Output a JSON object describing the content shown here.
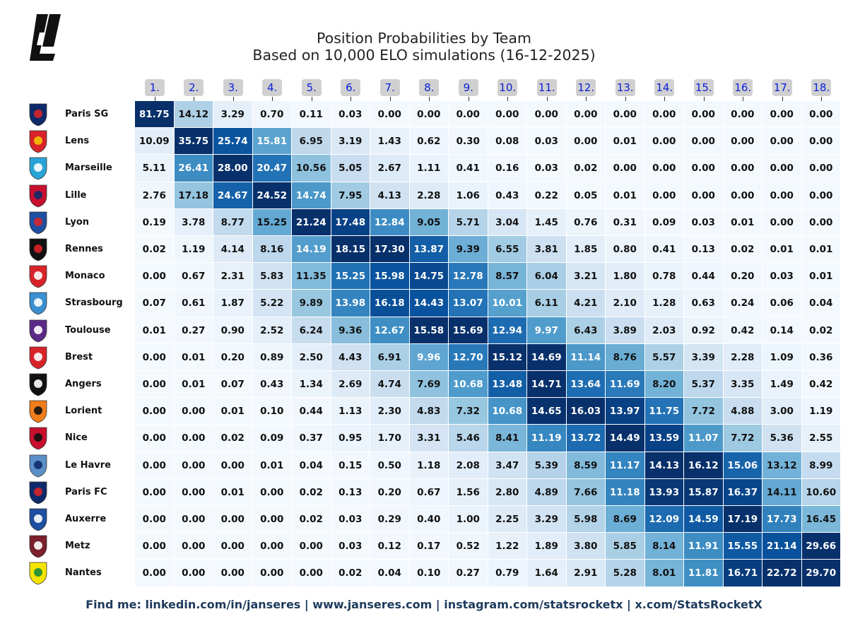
{
  "brand": {
    "logo": "stats-rocket-logo"
  },
  "chart_data": {
    "type": "heatmap",
    "title": "Position Probabilities by Team",
    "subtitle": "Based on 10,000 ELO simulations (16-12-2025)",
    "columns": [
      "1.",
      "2.",
      "3.",
      "4.",
      "5.",
      "6.",
      "7.",
      "8.",
      "9.",
      "10.",
      "11.",
      "12.",
      "13.",
      "14.",
      "15.",
      "16.",
      "17.",
      "18."
    ],
    "rows": [
      {
        "team": "Paris SG",
        "crest": "paris-sg-crest",
        "values": [
          "81.75",
          "14.12",
          "3.29",
          "0.70",
          "0.11",
          "0.03",
          "0.00",
          "0.00",
          "0.00",
          "0.00",
          "0.00",
          "0.00",
          "0.00",
          "0.00",
          "0.00",
          "0.00",
          "0.00",
          "0.00"
        ]
      },
      {
        "team": "Lens",
        "crest": "lens-crest",
        "values": [
          "10.09",
          "35.75",
          "25.74",
          "15.81",
          "6.95",
          "3.19",
          "1.43",
          "0.62",
          "0.30",
          "0.08",
          "0.03",
          "0.00",
          "0.01",
          "0.00",
          "0.00",
          "0.00",
          "0.00",
          "0.00"
        ]
      },
      {
        "team": "Marseille",
        "crest": "marseille-crest",
        "values": [
          "5.11",
          "26.41",
          "28.00",
          "20.47",
          "10.56",
          "5.05",
          "2.67",
          "1.11",
          "0.41",
          "0.16",
          "0.03",
          "0.02",
          "0.00",
          "0.00",
          "0.00",
          "0.00",
          "0.00",
          "0.00"
        ]
      },
      {
        "team": "Lille",
        "crest": "lille-crest",
        "values": [
          "2.76",
          "17.18",
          "24.67",
          "24.52",
          "14.74",
          "7.95",
          "4.13",
          "2.28",
          "1.06",
          "0.43",
          "0.22",
          "0.05",
          "0.01",
          "0.00",
          "0.00",
          "0.00",
          "0.00",
          "0.00"
        ]
      },
      {
        "team": "Lyon",
        "crest": "lyon-crest",
        "values": [
          "0.19",
          "3.78",
          "8.77",
          "15.25",
          "21.24",
          "17.48",
          "12.84",
          "9.05",
          "5.71",
          "3.04",
          "1.45",
          "0.76",
          "0.31",
          "0.09",
          "0.03",
          "0.01",
          "0.00",
          "0.00"
        ]
      },
      {
        "team": "Rennes",
        "crest": "rennes-crest",
        "values": [
          "0.02",
          "1.19",
          "4.14",
          "8.16",
          "14.19",
          "18.15",
          "17.30",
          "13.87",
          "9.39",
          "6.55",
          "3.81",
          "1.85",
          "0.80",
          "0.41",
          "0.13",
          "0.02",
          "0.01",
          "0.01"
        ]
      },
      {
        "team": "Monaco",
        "crest": "monaco-crest",
        "values": [
          "0.00",
          "0.67",
          "2.31",
          "5.83",
          "11.35",
          "15.25",
          "15.98",
          "14.75",
          "12.78",
          "8.57",
          "6.04",
          "3.21",
          "1.80",
          "0.78",
          "0.44",
          "0.20",
          "0.03",
          "0.01"
        ]
      },
      {
        "team": "Strasbourg",
        "crest": "strasbourg-crest",
        "values": [
          "0.07",
          "0.61",
          "1.87",
          "5.22",
          "9.89",
          "13.98",
          "16.18",
          "14.43",
          "13.07",
          "10.01",
          "6.11",
          "4.21",
          "2.10",
          "1.28",
          "0.63",
          "0.24",
          "0.06",
          "0.04"
        ]
      },
      {
        "team": "Toulouse",
        "crest": "toulouse-crest",
        "values": [
          "0.01",
          "0.27",
          "0.90",
          "2.52",
          "6.24",
          "9.36",
          "12.67",
          "15.58",
          "15.69",
          "12.94",
          "9.97",
          "6.43",
          "3.89",
          "2.03",
          "0.92",
          "0.42",
          "0.14",
          "0.02"
        ]
      },
      {
        "team": "Brest",
        "crest": "brest-crest",
        "values": [
          "0.00",
          "0.01",
          "0.20",
          "0.89",
          "2.50",
          "4.43",
          "6.91",
          "9.96",
          "12.70",
          "15.12",
          "14.69",
          "11.14",
          "8.76",
          "5.57",
          "3.39",
          "2.28",
          "1.09",
          "0.36"
        ]
      },
      {
        "team": "Angers",
        "crest": "angers-crest",
        "values": [
          "0.00",
          "0.01",
          "0.07",
          "0.43",
          "1.34",
          "2.69",
          "4.74",
          "7.69",
          "10.68",
          "13.48",
          "14.71",
          "13.64",
          "11.69",
          "8.20",
          "5.37",
          "3.35",
          "1.49",
          "0.42"
        ]
      },
      {
        "team": "Lorient",
        "crest": "lorient-crest",
        "values": [
          "0.00",
          "0.00",
          "0.01",
          "0.10",
          "0.44",
          "1.13",
          "2.30",
          "4.83",
          "7.32",
          "10.68",
          "14.65",
          "16.03",
          "13.97",
          "11.75",
          "7.72",
          "4.88",
          "3.00",
          "1.19"
        ]
      },
      {
        "team": "Nice",
        "crest": "nice-crest",
        "values": [
          "0.00",
          "0.00",
          "0.02",
          "0.09",
          "0.37",
          "0.95",
          "1.70",
          "3.31",
          "5.46",
          "8.41",
          "11.19",
          "13.72",
          "14.49",
          "13.59",
          "11.07",
          "7.72",
          "5.36",
          "2.55"
        ]
      },
      {
        "team": "Le Havre",
        "crest": "le-havre-crest",
        "values": [
          "0.00",
          "0.00",
          "0.00",
          "0.01",
          "0.04",
          "0.15",
          "0.50",
          "1.18",
          "2.08",
          "3.47",
          "5.39",
          "8.59",
          "11.17",
          "14.13",
          "16.12",
          "15.06",
          "13.12",
          "8.99"
        ]
      },
      {
        "team": "Paris FC",
        "crest": "paris-fc-crest",
        "values": [
          "0.00",
          "0.00",
          "0.01",
          "0.00",
          "0.02",
          "0.13",
          "0.20",
          "0.67",
          "1.56",
          "2.80",
          "4.89",
          "7.66",
          "11.18",
          "13.93",
          "15.87",
          "16.37",
          "14.11",
          "10.60"
        ]
      },
      {
        "team": "Auxerre",
        "crest": "auxerre-crest",
        "values": [
          "0.00",
          "0.00",
          "0.00",
          "0.00",
          "0.02",
          "0.03",
          "0.29",
          "0.40",
          "1.00",
          "2.25",
          "3.29",
          "5.98",
          "8.69",
          "12.09",
          "14.59",
          "17.19",
          "17.73",
          "16.45"
        ]
      },
      {
        "team": "Metz",
        "crest": "metz-crest",
        "values": [
          "0.00",
          "0.00",
          "0.00",
          "0.00",
          "0.00",
          "0.03",
          "0.12",
          "0.17",
          "0.52",
          "1.22",
          "1.89",
          "3.80",
          "5.85",
          "8.14",
          "11.91",
          "15.55",
          "21.14",
          "29.66"
        ]
      },
      {
        "team": "Nantes",
        "crest": "nantes-crest",
        "values": [
          "0.00",
          "0.00",
          "0.00",
          "0.00",
          "0.00",
          "0.02",
          "0.04",
          "0.10",
          "0.27",
          "0.79",
          "1.64",
          "2.91",
          "5.28",
          "8.01",
          "11.81",
          "16.71",
          "22.72",
          "29.70"
        ]
      }
    ],
    "color_scale": "Blues (column-normalized)",
    "grid": false,
    "legend": "none"
  },
  "footer": {
    "text": "Find me: linkedin.com/in/janseres | www.janseres.com | instagram.com/statsrocketx | x.com/StatsRocketX"
  },
  "colors": {
    "heat_low": "#f4f9fe",
    "heat_high": "#08306b",
    "header_text": "#0b20d8",
    "header_bg": "#d0d0d0",
    "footer_text": "#1d3a5c"
  }
}
